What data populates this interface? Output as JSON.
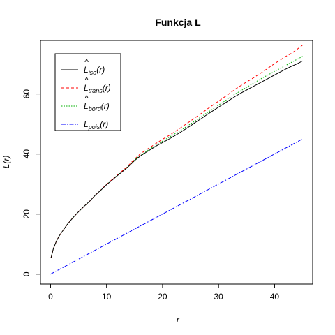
{
  "chart_data": {
    "type": "line",
    "title": "Funkcja L",
    "xlabel": "r",
    "ylabel": "L(r)",
    "xlim": [
      -1.8,
      46.8
    ],
    "ylim": [
      -3.3,
      77.8
    ],
    "x_ticks": [
      0,
      10,
      20,
      30,
      40
    ],
    "y_ticks": [
      0,
      20,
      40,
      60
    ],
    "grid": false,
    "legend_position": "top-left",
    "series": [
      {
        "key": "iso",
        "name": "L̂iso(r)",
        "legend_main": "L",
        "legend_sub": "iso",
        "legend_suffix": "(r)",
        "color": "#000000",
        "dash": "",
        "x": [
          0.1,
          0.5,
          1,
          1.5,
          2,
          3,
          4,
          5,
          6,
          7,
          8,
          9,
          10,
          11,
          12,
          13,
          14,
          15,
          16,
          17,
          18,
          19,
          20,
          21,
          22,
          23,
          24,
          25,
          26,
          27,
          28,
          29,
          30,
          31,
          32,
          33,
          34,
          35,
          36,
          37,
          38,
          39,
          40,
          41,
          42,
          43,
          44,
          45
        ],
        "y": [
          5.5,
          8.5,
          10.8,
          12.6,
          14.0,
          16.6,
          18.8,
          20.8,
          22.6,
          24.3,
          26.3,
          28.0,
          29.8,
          31.3,
          32.9,
          34.4,
          36.0,
          37.8,
          39.3,
          40.5,
          41.7,
          42.8,
          43.8,
          44.8,
          45.9,
          47.0,
          48.2,
          49.4,
          50.7,
          51.9,
          53.2,
          54.4,
          55.6,
          56.8,
          58.0,
          59.2,
          60.3,
          61.3,
          62.3,
          63.3,
          64.3,
          65.3,
          66.3,
          67.3,
          68.3,
          69.2,
          70.0,
          71.0
        ]
      },
      {
        "key": "trans",
        "name": "L̂trans(r)",
        "legend_main": "L",
        "legend_sub": "trans",
        "legend_suffix": "(r)",
        "color": "#ff0000",
        "dash": "4,3",
        "x": [
          0.1,
          0.5,
          1,
          1.5,
          2,
          3,
          4,
          5,
          6,
          7,
          8,
          9,
          10,
          11,
          12,
          13,
          14,
          15,
          16,
          17,
          18,
          19,
          20,
          21,
          22,
          23,
          24,
          25,
          26,
          27,
          28,
          29,
          30,
          31,
          32,
          33,
          34,
          35,
          36,
          37,
          38,
          39,
          40,
          41,
          42,
          43,
          44,
          45
        ],
        "y": [
          5.5,
          8.5,
          10.8,
          12.6,
          14.0,
          16.6,
          18.8,
          20.8,
          22.6,
          24.3,
          26.3,
          28.1,
          29.9,
          31.5,
          33.1,
          34.7,
          36.4,
          38.3,
          40.0,
          41.3,
          42.5,
          43.7,
          44.9,
          46.0,
          47.2,
          48.4,
          49.7,
          51.0,
          52.3,
          53.6,
          55.0,
          56.3,
          57.6,
          58.9,
          60.2,
          61.6,
          62.8,
          64.0,
          65.1,
          66.3,
          67.5,
          68.8,
          70.1,
          71.3,
          72.5,
          73.5,
          74.8,
          76.3
        ]
      },
      {
        "key": "bord",
        "name": "L̂bord(r)",
        "legend_main": "L",
        "legend_sub": "bord",
        "legend_suffix": "(r)",
        "color": "#00b000",
        "dash": "1.5,2",
        "x": [
          0.1,
          0.5,
          1,
          1.5,
          2,
          3,
          4,
          5,
          6,
          7,
          8,
          9,
          10,
          11,
          12,
          13,
          14,
          15,
          16,
          17,
          18,
          19,
          20,
          21,
          22,
          23,
          24,
          25,
          26,
          27,
          28,
          29,
          30,
          31,
          32,
          33,
          34,
          35,
          36,
          37,
          38,
          39,
          40,
          41,
          42,
          43,
          44,
          45
        ],
        "y": [
          5.5,
          8.5,
          10.8,
          12.6,
          14.0,
          16.6,
          18.8,
          20.8,
          22.6,
          24.3,
          26.3,
          28.0,
          29.9,
          31.4,
          33.0,
          34.5,
          36.1,
          38.0,
          39.5,
          40.8,
          42.0,
          43.2,
          44.3,
          45.4,
          46.5,
          47.6,
          48.8,
          50.0,
          51.3,
          52.5,
          53.8,
          55.0,
          56.3,
          57.5,
          58.8,
          60.0,
          61.1,
          62.2,
          63.3,
          64.4,
          65.5,
          66.5,
          67.5,
          68.5,
          69.5,
          70.5,
          71.5,
          72.5
        ]
      },
      {
        "key": "pois",
        "name": "Lpois(r)",
        "legend_main": "L",
        "legend_sub": "pois",
        "legend_suffix": "(r)",
        "color": "#0000ff",
        "dash": "6,2,1.5,2",
        "x": [
          0,
          45
        ],
        "y": [
          0,
          45
        ]
      }
    ]
  }
}
